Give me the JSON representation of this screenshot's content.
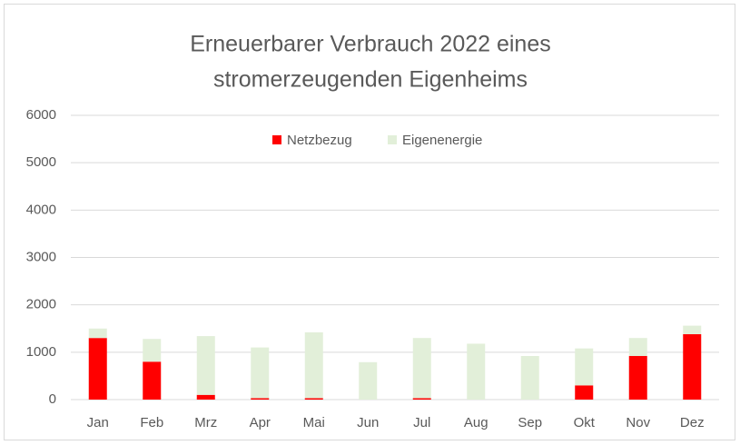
{
  "chart_data": {
    "type": "stacked_bar",
    "title": [
      "Erneuerbarer Verbrauch 2022 eines",
      "stromerzeugenden Eigenheims"
    ],
    "categories": [
      "Jan",
      "Feb",
      "Mrz",
      "Apr",
      "Mai",
      "Jun",
      "Jul",
      "Aug",
      "Sep",
      "Okt",
      "Nov",
      "Dez"
    ],
    "series": [
      {
        "name": "Netzbezug",
        "color": "#ff0000",
        "values": [
          1300,
          800,
          100,
          30,
          30,
          0,
          30,
          0,
          0,
          300,
          920,
          1380
        ]
      },
      {
        "name": "Eigenenergie",
        "color": "#e2efd9",
        "values": [
          200,
          480,
          1240,
          1070,
          1390,
          790,
          1270,
          1180,
          920,
          780,
          380,
          180
        ]
      }
    ],
    "ylim": [
      0,
      6000
    ],
    "yticks": [
      0,
      1000,
      2000,
      3000,
      4000,
      5000,
      6000
    ],
    "grid": true,
    "legend": "top"
  }
}
